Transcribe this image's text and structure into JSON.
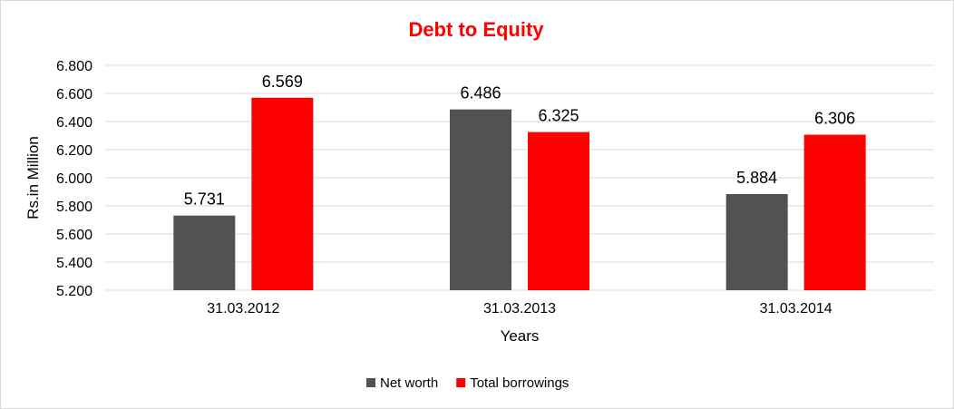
{
  "chart_data": {
    "type": "bar",
    "title": "Debt to Equity",
    "xlabel": "Years",
    "ylabel": "Rs.in Million",
    "categories": [
      "31.03.2012",
      "31.03.2013",
      "31.03.2014"
    ],
    "series": [
      {
        "name": "Net worth",
        "color": "#525252",
        "values": [
          5.731,
          6.486,
          5.884
        ],
        "labels": [
          "5.731",
          "6.486",
          "5.884"
        ]
      },
      {
        "name": "Total borrowings",
        "color": "#ff0000",
        "values": [
          6.569,
          6.325,
          6.306
        ],
        "labels": [
          "6.569",
          "6.325",
          "6.306"
        ]
      }
    ],
    "ylim": [
      5.2,
      6.8
    ],
    "yticks": [
      "5.200",
      "5.400",
      "5.600",
      "5.800",
      "6.000",
      "6.200",
      "6.400",
      "6.600",
      "6.800"
    ],
    "grid": true,
    "legend": "bottom",
    "title_color": "#ff0000"
  }
}
